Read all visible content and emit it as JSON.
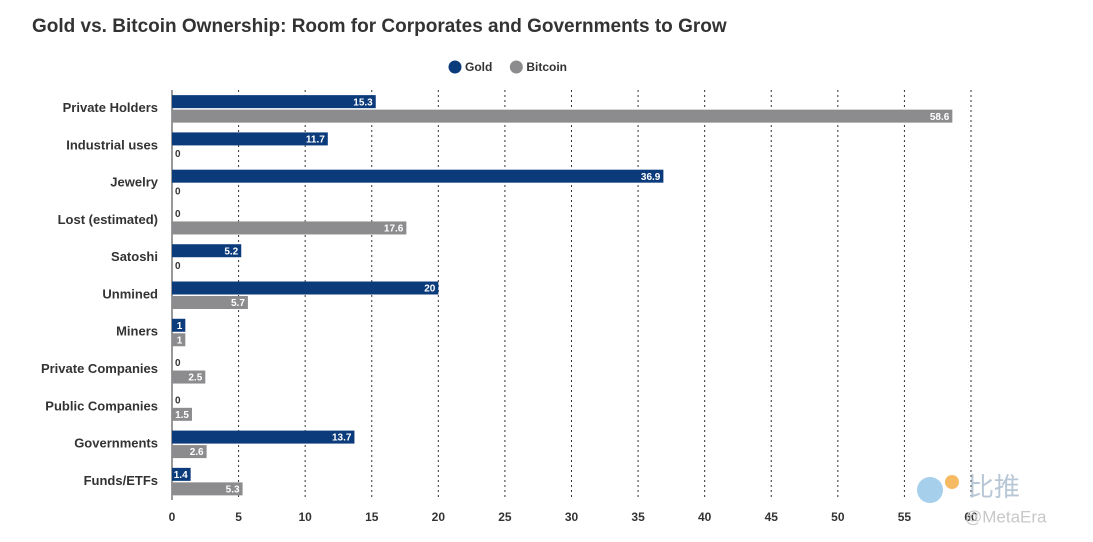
{
  "chart_data": {
    "type": "bar",
    "orientation": "horizontal",
    "title": "Gold vs. Bitcoin Ownership: Room for Corporates and Governments to Grow",
    "categories": [
      "Private Holders",
      "Industrial uses",
      "Jewelry",
      "Lost (estimated)",
      "Satoshi",
      "Unmined",
      "Miners",
      "Private Companies",
      "Public Companies",
      "Governments",
      "Funds/ETFs"
    ],
    "series": [
      {
        "name": "Gold",
        "color": "#0c3b7c",
        "values": [
          15.3,
          11.7,
          36.9,
          0,
          5.2,
          20,
          1,
          0,
          0,
          13.7,
          1.4
        ]
      },
      {
        "name": "Bitcoin",
        "color": "#8c8c8e",
        "values": [
          58.6,
          0,
          0,
          17.6,
          0,
          5.7,
          1,
          2.5,
          1.5,
          2.6,
          5.3
        ]
      }
    ],
    "xlim": [
      0,
      60
    ],
    "xticks": [
      0,
      5,
      10,
      15,
      20,
      25,
      30,
      35,
      40,
      45,
      50,
      55,
      60
    ],
    "grid": true,
    "legend": "top",
    "watermarks": [
      "比推",
      "@MetaEra"
    ]
  }
}
